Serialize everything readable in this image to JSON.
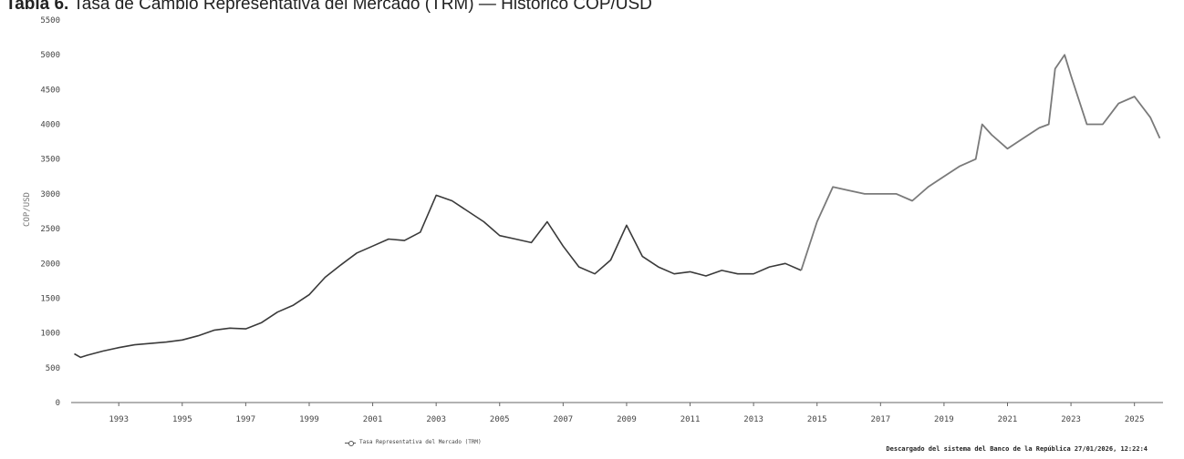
{
  "title": {
    "prefix": "Tabla 6.",
    "text": "Tasa de Cambio Representativa del Mercado (TRM) — Histórico COP/USD"
  },
  "footer": {
    "source": "Descargado del sistema del Banco de la República 27/01/2026, 12:22:4"
  },
  "colors": {
    "line_old": "#3a3a3a",
    "line_new": "#7a7a7a",
    "axis": "#666666"
  },
  "chart_data": {
    "type": "line",
    "title": "",
    "xlabel": "",
    "ylabel": "COP/USD",
    "xlim": [
      1991.5,
      2025.9
    ],
    "ylim": [
      0,
      5500
    ],
    "y_ticks": [
      0,
      500,
      1000,
      1500,
      2000,
      2500,
      3000,
      3500,
      4000,
      4500,
      5000,
      5500
    ],
    "x_ticks": [
      1993,
      1995,
      1997,
      1999,
      2001,
      2003,
      2005,
      2007,
      2009,
      2011,
      2013,
      2015,
      2017,
      2019,
      2021,
      2023,
      2025
    ],
    "grid": false,
    "legend_position": "bottom-left",
    "series": [
      {
        "name": "Tasa Representativa del Mercado (TRM)",
        "x": [
          1991.6,
          1991.8,
          1992.0,
          1992.5,
          1993.0,
          1993.5,
          1994.0,
          1994.5,
          1995.0,
          1995.5,
          1996.0,
          1996.5,
          1997.0,
          1997.5,
          1998.0,
          1998.5,
          1999.0,
          1999.5,
          2000.0,
          2000.5,
          2001.0,
          2001.5,
          2002.0,
          2002.5,
          2003.0,
          2003.5,
          2004.0,
          2004.5,
          2005.0,
          2005.5,
          2006.0,
          2006.5,
          2007.0,
          2007.5,
          2008.0,
          2008.5,
          2009.0,
          2009.5,
          2010.0,
          2010.5,
          2011.0,
          2011.5,
          2012.0,
          2012.5,
          2013.0,
          2013.5,
          2014.0,
          2014.5,
          2015.0,
          2015.5,
          2016.0,
          2016.5,
          2017.0,
          2017.5,
          2018.0,
          2018.5,
          2019.0,
          2019.5,
          2020.0,
          2020.2,
          2020.5,
          2021.0,
          2021.5,
          2022.0,
          2022.3,
          2022.5,
          2022.8,
          2023.0,
          2023.5,
          2024.0,
          2024.5,
          2025.0,
          2025.5,
          2025.8
        ],
        "y": [
          700,
          650,
          680,
          740,
          790,
          830,
          850,
          870,
          900,
          960,
          1040,
          1070,
          1060,
          1150,
          1300,
          1400,
          1550,
          1800,
          1980,
          2150,
          2250,
          2350,
          2330,
          2450,
          2980,
          2900,
          2750,
          2600,
          2400,
          2350,
          2300,
          2600,
          2250,
          1950,
          1850,
          2050,
          2550,
          2100,
          1950,
          1850,
          1880,
          1820,
          1900,
          1850,
          1850,
          1950,
          2000,
          1900,
          2600,
          3100,
          3050,
          3000,
          3000,
          3000,
          2900,
          3100,
          3250,
          3400,
          3500,
          4000,
          3850,
          3650,
          3800,
          3950,
          4000,
          4800,
          5000,
          4700,
          4000,
          4000,
          4300,
          4400,
          4100,
          3800
        ]
      }
    ]
  }
}
